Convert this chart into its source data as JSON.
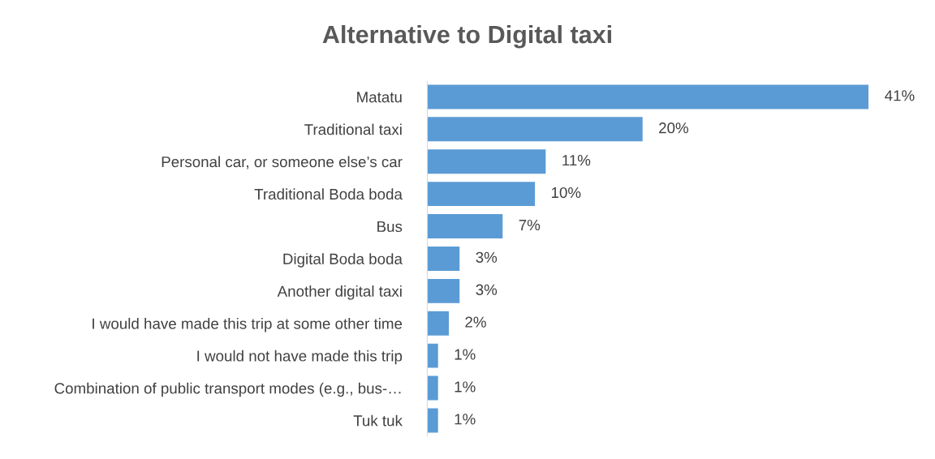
{
  "chart_data": {
    "type": "bar",
    "orientation": "horizontal",
    "title": "Alternative to Digital taxi",
    "categories": [
      "Matatu",
      "Traditional taxi",
      "Personal car, or someone else’s car",
      "Traditional Boda boda",
      "Bus",
      "Digital Boda boda",
      "Another digital taxi",
      "I would have made this trip at some other time",
      "I would not have made this trip",
      "Combination of public transport modes (e.g., bus-…",
      "Tuk tuk"
    ],
    "values": [
      41,
      20,
      11,
      10,
      7,
      3,
      3,
      2,
      1,
      1,
      1
    ],
    "value_labels": [
      "41%",
      "20%",
      "11%",
      "10%",
      "7%",
      "3%",
      "3%",
      "2%",
      "1%",
      "1%",
      "1%"
    ],
    "color": "#5b9bd5",
    "grid": false,
    "legend": false
  }
}
